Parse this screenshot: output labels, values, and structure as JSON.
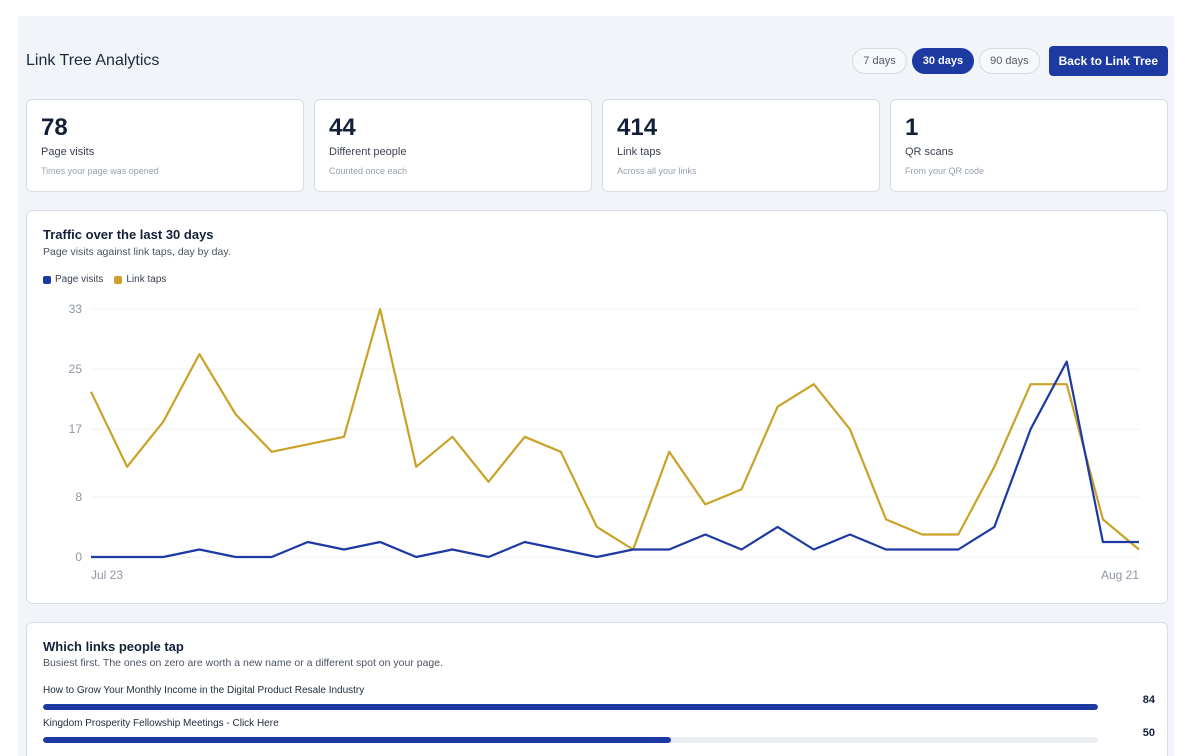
{
  "header": {
    "title": "Link Tree Analytics",
    "ranges": [
      "7 days",
      "30 days",
      "90 days"
    ],
    "active_range": "30 days",
    "back_label": "Back to Link Tree"
  },
  "stats": [
    {
      "value": "78",
      "label": "Page visits",
      "sub": "Times your page was opened"
    },
    {
      "value": "44",
      "label": "Different people",
      "sub": "Counted once each"
    },
    {
      "value": "414",
      "label": "Link taps",
      "sub": "Across all your links"
    },
    {
      "value": "1",
      "label": "QR scans",
      "sub": "From your QR code"
    }
  ],
  "traffic": {
    "title": "Traffic over the last 30 days",
    "subtitle": "Page visits against link taps, day by day."
  },
  "colors": {
    "page_visits": "#1d3aa3",
    "link_taps": "#c9a227",
    "accent": "#1d3aa3"
  },
  "chart_data": {
    "type": "line",
    "x_labels": [
      "Jul 23",
      "Aug 21"
    ],
    "y_ticks": [
      0,
      8,
      17,
      25,
      33
    ],
    "ylim": [
      0,
      33
    ],
    "grid": true,
    "legend": "top-left",
    "series": [
      {
        "name": "Page visits",
        "values": [
          0,
          0,
          0,
          1,
          0,
          0,
          2,
          1,
          2,
          0,
          1,
          0,
          2,
          1,
          0,
          1,
          1,
          3,
          1,
          4,
          1,
          3,
          1,
          1,
          1,
          4,
          17,
          26,
          2,
          2
        ]
      },
      {
        "name": "Link taps",
        "values": [
          22,
          12,
          18,
          27,
          19,
          14,
          15,
          16,
          33,
          12,
          16,
          10,
          16,
          14,
          4,
          1,
          14,
          7,
          9,
          20,
          23,
          17,
          5,
          3,
          3,
          12,
          23,
          23,
          5,
          1
        ]
      }
    ]
  },
  "links": {
    "title": "Which links people tap",
    "subtitle": "Busiest first. The ones on zero are worth a new name or a different spot on your page.",
    "max": 84,
    "items": [
      {
        "label": "How to Grow Your Monthly Income in the Digital Product Resale Industry",
        "count": 84
      },
      {
        "label": "Kingdom Prosperity Fellowship Meetings - Click Here",
        "count": 50
      }
    ]
  }
}
